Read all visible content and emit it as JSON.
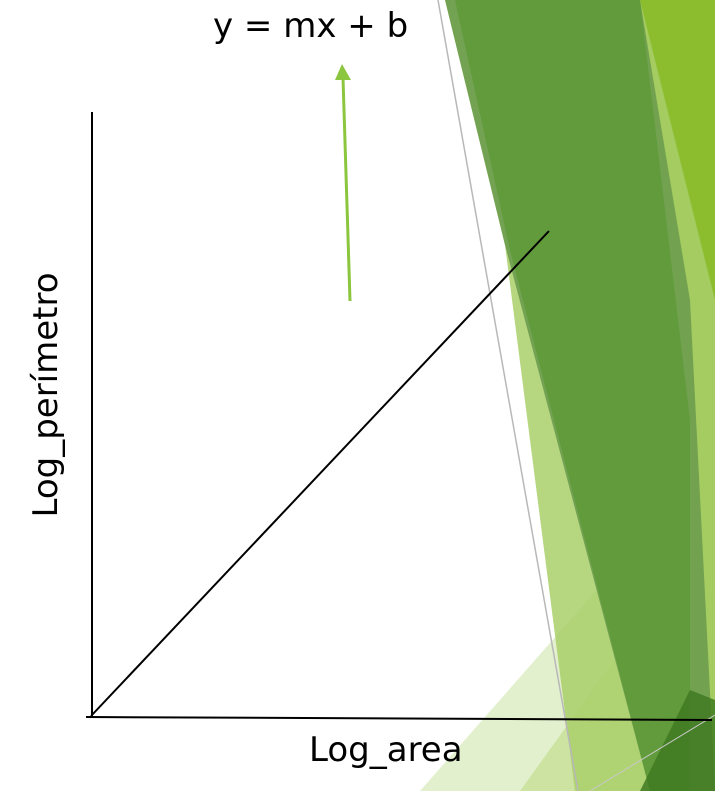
{
  "diagram": {
    "equation": "y = mx + b",
    "x_axis_label": "Log_area",
    "y_axis_label": "Log_perímetro",
    "colors": {
      "arrow": "#8cc63f",
      "axes": "#000000",
      "theme_dark_green": "#5f9a3a",
      "theme_mid_green": "#6f9f4f",
      "theme_bright_green": "#8bbd2f",
      "theme_light_green": "#dfeec8",
      "theme_pale_green": "#c8e19a"
    }
  }
}
